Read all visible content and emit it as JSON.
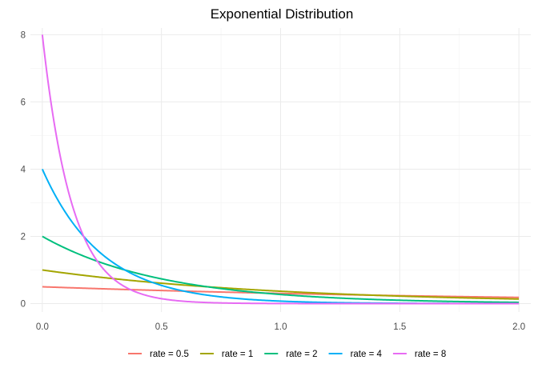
{
  "chart_data": {
    "type": "line",
    "title": "Exponential Distribution",
    "xlabel": "",
    "ylabel": "",
    "xlim": [
      -0.05,
      2.05
    ],
    "ylim": [
      -0.25,
      8.2
    ],
    "x_ticks": [
      0.0,
      0.5,
      1.0,
      1.5,
      2.0
    ],
    "x_tick_labels": [
      "0.0",
      "0.5",
      "1.0",
      "1.5",
      "2.0"
    ],
    "y_ticks": [
      0,
      2,
      4,
      6,
      8
    ],
    "y_tick_labels": [
      "0",
      "2",
      "4",
      "6",
      "8"
    ],
    "grid": true,
    "legend_position": "bottom",
    "x": [
      0.0,
      0.05,
      0.1,
      0.15,
      0.2,
      0.25,
      0.3,
      0.35,
      0.4,
      0.45,
      0.5,
      0.55,
      0.6,
      0.65,
      0.7,
      0.75,
      0.8,
      0.85,
      0.9,
      0.95,
      1.0,
      1.05,
      1.1,
      1.15,
      1.2,
      1.25,
      1.3,
      1.35,
      1.4,
      1.45,
      1.5,
      1.55,
      1.6,
      1.65,
      1.7,
      1.75,
      1.8,
      1.85,
      1.9,
      1.95,
      2.0
    ],
    "series": [
      {
        "name": "rate = 0.5",
        "color": "#F8766D",
        "values": [
          0.5,
          0.488,
          0.476,
          0.464,
          0.452,
          0.441,
          0.43,
          0.42,
          0.409,
          0.399,
          0.389,
          0.38,
          0.37,
          0.361,
          0.352,
          0.344,
          0.335,
          0.327,
          0.319,
          0.311,
          0.303,
          0.296,
          0.288,
          0.281,
          0.274,
          0.268,
          0.261,
          0.255,
          0.248,
          0.242,
          0.236,
          0.23,
          0.225,
          0.219,
          0.214,
          0.208,
          0.203,
          0.198,
          0.193,
          0.189,
          0.184
        ]
      },
      {
        "name": "rate = 1",
        "color": "#A3A500",
        "values": [
          1.0,
          0.951,
          0.905,
          0.861,
          0.819,
          0.779,
          0.741,
          0.705,
          0.67,
          0.638,
          0.607,
          0.577,
          0.549,
          0.522,
          0.497,
          0.472,
          0.449,
          0.427,
          0.407,
          0.387,
          0.368,
          0.35,
          0.333,
          0.317,
          0.301,
          0.287,
          0.273,
          0.259,
          0.247,
          0.235,
          0.223,
          0.212,
          0.202,
          0.192,
          0.183,
          0.174,
          0.165,
          0.157,
          0.15,
          0.142,
          0.135
        ]
      },
      {
        "name": "rate = 2",
        "color": "#00BF7D",
        "values": [
          2.0,
          1.81,
          1.637,
          1.482,
          1.341,
          1.213,
          1.098,
          0.993,
          0.899,
          0.813,
          0.736,
          0.666,
          0.602,
          0.545,
          0.493,
          0.446,
          0.404,
          0.365,
          0.331,
          0.299,
          0.271,
          0.245,
          0.222,
          0.2,
          0.181,
          0.164,
          0.149,
          0.134,
          0.122,
          0.11,
          0.1,
          0.09,
          0.082,
          0.074,
          0.067,
          0.06,
          0.055,
          0.049,
          0.045,
          0.04,
          0.037
        ]
      },
      {
        "name": "rate = 4",
        "color": "#00B0F6",
        "values": [
          4.0,
          3.275,
          2.681,
          2.195,
          1.797,
          1.472,
          1.205,
          0.986,
          0.808,
          0.661,
          0.541,
          0.443,
          0.363,
          0.297,
          0.243,
          0.199,
          0.163,
          0.133,
          0.109,
          0.089,
          0.073,
          0.06,
          0.049,
          0.04,
          0.033,
          0.027,
          0.022,
          0.018,
          0.015,
          0.012,
          0.01,
          0.008,
          0.007,
          0.005,
          0.004,
          0.004,
          0.003,
          0.002,
          0.002,
          0.002,
          0.001
        ]
      },
      {
        "name": "rate = 8",
        "color": "#E76BF3",
        "values": [
          8.0,
          5.363,
          3.595,
          2.41,
          1.615,
          1.083,
          0.726,
          0.487,
          0.326,
          0.219,
          0.147,
          0.098,
          0.066,
          0.044,
          0.03,
          0.02,
          0.013,
          0.009,
          0.006,
          0.004,
          0.003,
          0.002,
          0.001,
          0.001,
          0.001,
          0.0,
          0.0,
          0.0,
          0.0,
          0.0,
          0.0,
          0.0,
          0.0,
          0.0,
          0.0,
          0.0,
          0.0,
          0.0,
          0.0,
          0.0,
          0.0
        ]
      }
    ]
  }
}
